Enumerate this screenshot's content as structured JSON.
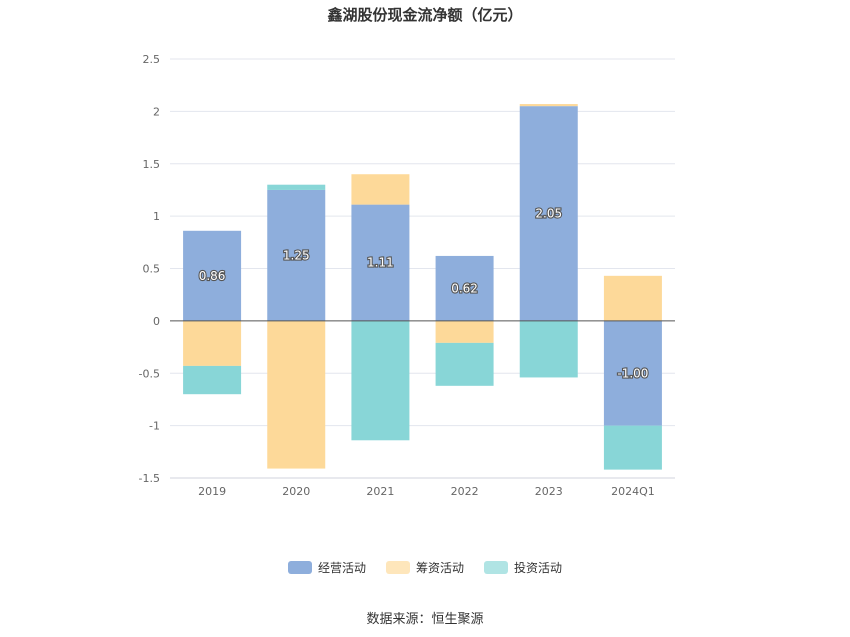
{
  "title": "鑫湖股份现金流净额（亿元）",
  "source": "数据来源：恒生聚源",
  "chart_data": {
    "type": "bar",
    "stacked": true,
    "categories": [
      "2019",
      "2020",
      "2021",
      "2022",
      "2023",
      "2024Q1"
    ],
    "ylim": [
      -1.5,
      2.5
    ],
    "yticks": [
      "2.5",
      "2",
      "1.5",
      "1",
      "0.5",
      "0",
      "-0.5",
      "-1",
      "-1.5"
    ],
    "ytick_values": [
      2.5,
      2,
      1.5,
      1,
      0.5,
      0,
      -0.5,
      -1,
      -1.5
    ],
    "legend_position": "bottom",
    "grid": true,
    "series": [
      {
        "name": "经营活动",
        "color": "#8eaedc",
        "values": [
          0.86,
          1.25,
          1.11,
          0.62,
          2.05,
          -1.0
        ],
        "labels": [
          "0.86",
          "1.25",
          "1.11",
          "0.62",
          "2.05",
          "-1.00"
        ]
      },
      {
        "name": "筹资活动",
        "color": "#fdd999",
        "values": [
          -0.43,
          -1.41,
          0.29,
          -0.21,
          0.02,
          0.43
        ]
      },
      {
        "name": "投资活动",
        "color": "#88d6d7",
        "values": [
          -0.27,
          0.05,
          -1.14,
          -0.41,
          -0.54,
          -0.42
        ]
      }
    ]
  },
  "legend": {
    "items": [
      {
        "label": "经营活动",
        "color": "#8eaedc"
      },
      {
        "label": "筹资活动",
        "color": "#fdd999"
      },
      {
        "label": "投资活动",
        "color": "#88d6d7"
      }
    ]
  }
}
